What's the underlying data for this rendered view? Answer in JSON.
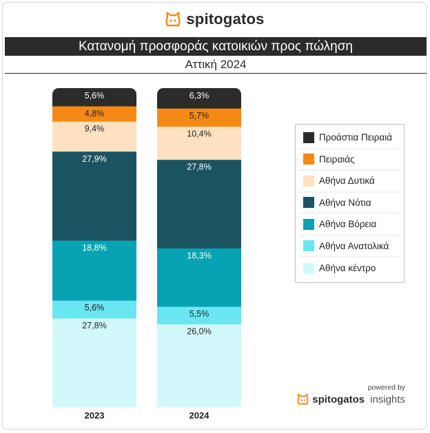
{
  "brand": {
    "name": "spitogatos",
    "color": "#f28a1a",
    "icon": "cat-head-icon"
  },
  "header": {
    "title": "Κατανομή προσφοράς κατοικιών προς πώληση",
    "subtitle": "Αττική 2024"
  },
  "footer": {
    "powered_by": "powered by",
    "brand_name": "spitogatos",
    "brand_suffix": "insights"
  },
  "chart_data": {
    "type": "bar",
    "stacked": true,
    "percent": true,
    "categories": [
      "2023",
      "2024"
    ],
    "series": [
      {
        "name": "Αθήνα κέντρο",
        "color": "#d2f8fb",
        "text_color": "#222222",
        "values": [
          27.8,
          26.0
        ],
        "labels": [
          "27,8%",
          "26,0%"
        ]
      },
      {
        "name": "Αθήνα Ανατολικά",
        "color": "#6ae6f3",
        "text_color": "#222222",
        "values": [
          5.6,
          5.5
        ],
        "labels": [
          "5,6%",
          "5,5%"
        ]
      },
      {
        "name": "Αθήνα Βόρεια",
        "color": "#07a3b2",
        "text_color": "#ffffff",
        "values": [
          18.8,
          18.3
        ],
        "labels": [
          "18,8%",
          "18,3%"
        ]
      },
      {
        "name": "Αθήνα Νότια",
        "color": "#1c5361",
        "text_color": "#ffffff",
        "values": [
          27.9,
          27.8
        ],
        "labels": [
          "27,9%",
          "27,8%"
        ]
      },
      {
        "name": "Αθήνα Δυτικά",
        "color": "#fde1c1",
        "text_color": "#222222",
        "values": [
          9.4,
          10.4
        ],
        "labels": [
          "9,4%",
          "10,4%"
        ]
      },
      {
        "name": "Πειραιάς",
        "color": "#f48a15",
        "text_color": "#222222",
        "values": [
          4.8,
          5.7
        ],
        "labels": [
          "4,8%",
          "5,7%"
        ]
      },
      {
        "name": "Προάστια Πειραιά",
        "color": "#2b2b2b",
        "text_color": "#ffffff",
        "values": [
          5.6,
          6.3
        ],
        "labels": [
          "5,6%",
          "6,3%"
        ]
      }
    ],
    "legend_order": [
      "Προάστια Πειραιά",
      "Πειραιάς",
      "Αθήνα Δυτικά",
      "Αθήνα Νότια",
      "Αθήνα Βόρεια",
      "Αθήνα Ανατολικά",
      "Αθήνα κέντρο"
    ],
    "legend_position": "right",
    "grid": false
  }
}
